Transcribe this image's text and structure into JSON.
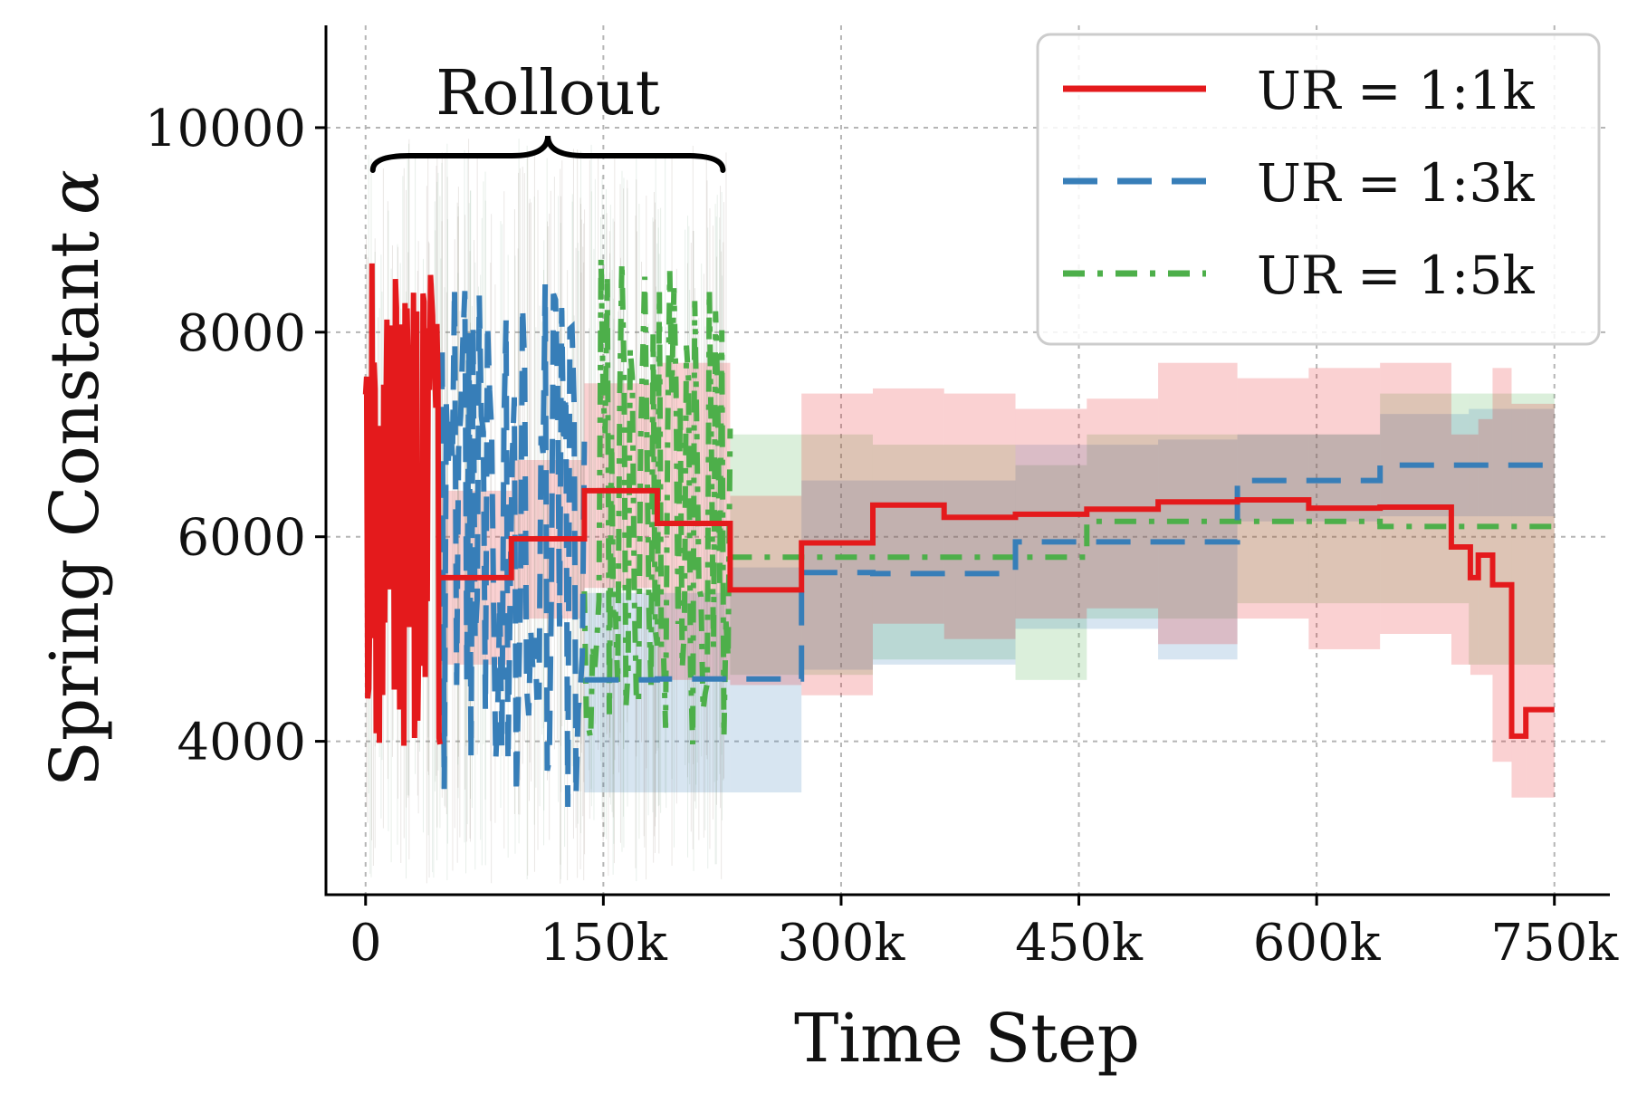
{
  "chart_data": {
    "type": "line",
    "xlabel": "Time Step",
    "ylabel": "Spring Constant",
    "ylabel_symbol": "α",
    "xlim": [
      -25000,
      785000
    ],
    "ylim": [
      2500,
      11000
    ],
    "grid": true,
    "legend_position": "top-right",
    "x_ticks": [
      {
        "value": 0,
        "label": "0"
      },
      {
        "value": 150000,
        "label": "150k"
      },
      {
        "value": 300000,
        "label": "300k"
      },
      {
        "value": 450000,
        "label": "450k"
      },
      {
        "value": 600000,
        "label": "600k"
      },
      {
        "value": 750000,
        "label": "750k"
      }
    ],
    "y_ticks": [
      {
        "value": 4000,
        "label": "4000"
      },
      {
        "value": 6000,
        "label": "6000"
      },
      {
        "value": 8000,
        "label": "8000"
      },
      {
        "value": 10000,
        "label": "10000"
      }
    ],
    "annotations": [
      {
        "text": "Rollout",
        "x_start": 0,
        "x_end": 230000
      }
    ],
    "series": [
      {
        "name": "UR = 1:1k",
        "color": "#e41a1c",
        "style": "solid",
        "noisy_segment": {
          "x_start": 0,
          "x_end": 47000,
          "center": 6050,
          "amp_min": 3800,
          "amp_max": 8750
        },
        "steps": [
          {
            "x0": 47000,
            "x1": 92000,
            "y": 5600,
            "lo": 4750,
            "hi": 6450
          },
          {
            "x0": 92000,
            "x1": 138000,
            "y": 5980,
            "lo": 5200,
            "hi": 6750
          },
          {
            "x0": 138000,
            "x1": 184000,
            "y": 6450,
            "lo": 5500,
            "hi": 7500
          },
          {
            "x0": 184000,
            "x1": 230000,
            "y": 6130,
            "lo": 4600,
            "hi": 7700
          },
          {
            "x0": 230000,
            "x1": 275000,
            "y": 5480,
            "lo": 4550,
            "hi": 6400
          },
          {
            "x0": 275000,
            "x1": 320000,
            "y": 5940,
            "lo": 4450,
            "hi": 7400
          },
          {
            "x0": 320000,
            "x1": 365000,
            "y": 6310,
            "lo": 5150,
            "hi": 7450
          },
          {
            "x0": 365000,
            "x1": 410000,
            "y": 6190,
            "lo": 5000,
            "hi": 7400
          },
          {
            "x0": 410000,
            "x1": 455000,
            "y": 6220,
            "lo": 5200,
            "hi": 7250
          },
          {
            "x0": 455000,
            "x1": 500000,
            "y": 6270,
            "lo": 5300,
            "hi": 7350
          },
          {
            "x0": 500000,
            "x1": 550000,
            "y": 6340,
            "lo": 4950,
            "hi": 7700
          },
          {
            "x0": 550000,
            "x1": 595000,
            "y": 6360,
            "lo": 5200,
            "hi": 7550
          },
          {
            "x0": 595000,
            "x1": 640000,
            "y": 6280,
            "lo": 4900,
            "hi": 7650
          },
          {
            "x0": 640000,
            "x1": 685000,
            "y": 6290,
            "lo": 5050,
            "hi": 7700
          },
          {
            "x0": 685000,
            "x1": 697000,
            "y": 5900,
            "lo": 4750,
            "hi": 7000
          },
          {
            "x0": 697000,
            "x1": 702000,
            "y": 5600,
            "lo": 4650,
            "hi": 7000
          },
          {
            "x0": 702000,
            "x1": 711000,
            "y": 5820,
            "lo": 4650,
            "hi": 7150
          },
          {
            "x0": 711000,
            "x1": 723000,
            "y": 5530,
            "lo": 3800,
            "hi": 7650
          },
          {
            "x0": 723000,
            "x1": 732000,
            "y": 4050,
            "lo": 3450,
            "hi": 7300
          },
          {
            "x0": 732000,
            "x1": 750000,
            "y": 4310,
            "lo": 3450,
            "hi": 7300
          }
        ]
      },
      {
        "name": "UR = 1:3k",
        "color": "#377eb8",
        "style": "dashed",
        "noisy_segment": {
          "x_start": 47000,
          "x_end": 138000,
          "center": 6150,
          "amp_min": 3350,
          "amp_max": 8500
        },
        "steps": [
          {
            "x0": 138000,
            "x1": 184000,
            "y": 4600,
            "lo": 3500,
            "hi": 5450
          },
          {
            "x0": 184000,
            "x1": 230000,
            "y": 4610,
            "lo": 3500,
            "hi": 5450
          },
          {
            "x0": 230000,
            "x1": 275000,
            "y": 4610,
            "lo": 3500,
            "hi": 5700
          },
          {
            "x0": 275000,
            "x1": 320000,
            "y": 5650,
            "lo": 4700,
            "hi": 6550
          },
          {
            "x0": 320000,
            "x1": 410000,
            "y": 5640,
            "lo": 4750,
            "hi": 6550
          },
          {
            "x0": 410000,
            "x1": 500000,
            "y": 5950,
            "lo": 5100,
            "hi": 6900
          },
          {
            "x0": 500000,
            "x1": 550000,
            "y": 5950,
            "lo": 4800,
            "hi": 6950
          },
          {
            "x0": 550000,
            "x1": 640000,
            "y": 6550,
            "lo": 6150,
            "hi": 7000
          },
          {
            "x0": 640000,
            "x1": 696000,
            "y": 6700,
            "lo": 6200,
            "hi": 7200
          },
          {
            "x0": 696000,
            "x1": 750000,
            "y": 6700,
            "lo": 6200,
            "hi": 7250
          }
        ]
      },
      {
        "name": "UR = 1:5k",
        "color": "#4daf4a",
        "style": "dashdot",
        "noisy_segment": {
          "x_start": 138000,
          "x_end": 230000,
          "center": 6200,
          "amp_min": 3900,
          "amp_max": 8800
        },
        "steps": [
          {
            "x0": 230000,
            "x1": 320000,
            "y": 5800,
            "lo": 4650,
            "hi": 7000
          },
          {
            "x0": 320000,
            "x1": 410000,
            "y": 5800,
            "lo": 4800,
            "hi": 6900
          },
          {
            "x0": 410000,
            "x1": 455000,
            "y": 5800,
            "lo": 4600,
            "hi": 6700
          },
          {
            "x0": 455000,
            "x1": 550000,
            "y": 6150,
            "lo": 5200,
            "hi": 7000
          },
          {
            "x0": 550000,
            "x1": 640000,
            "y": 6150,
            "lo": 5350,
            "hi": 7000
          },
          {
            "x0": 640000,
            "x1": 696000,
            "y": 6100,
            "lo": 5350,
            "hi": 7400
          },
          {
            "x0": 696000,
            "x1": 750000,
            "y": 6100,
            "lo": 4750,
            "hi": 7400
          }
        ]
      }
    ]
  }
}
